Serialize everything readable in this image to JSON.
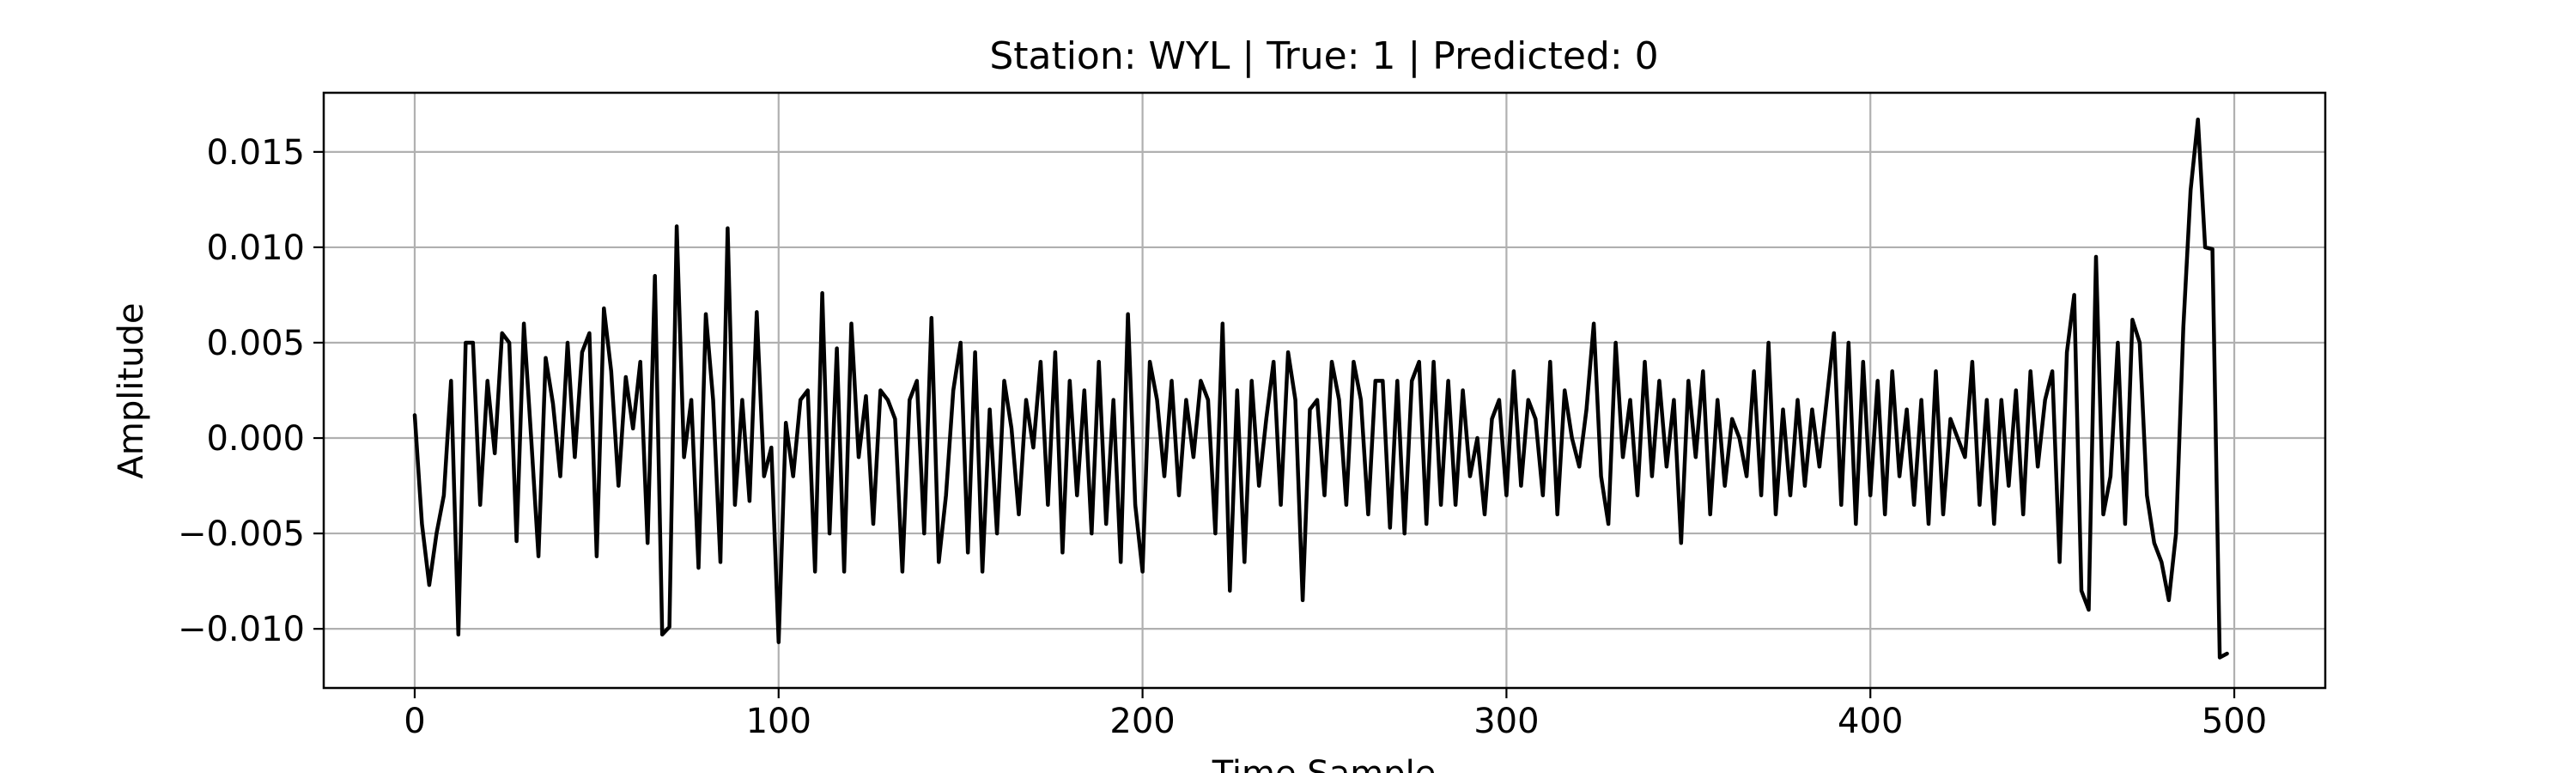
{
  "chart_data": {
    "type": "line",
    "title": "Station: WYL | True: 1 | Predicted: 0",
    "xlabel": "Time Sample",
    "ylabel": "Amplitude",
    "xlim": [
      -25,
      525
    ],
    "ylim": [
      -0.0131,
      0.0181
    ],
    "xticks": [
      0,
      100,
      200,
      300,
      400,
      500
    ],
    "xtick_labels": [
      "0",
      "100",
      "200",
      "300",
      "400",
      "500"
    ],
    "yticks": [
      -0.01,
      -0.005,
      0.0,
      0.005,
      0.01,
      0.015
    ],
    "ytick_labels": [
      "−0.010",
      "−0.005",
      "0.000",
      "0.005",
      "0.010",
      "0.015"
    ],
    "grid": true,
    "line_color": "#000000",
    "grid_color": "#b0b0b0",
    "series": [
      {
        "x_start": 0,
        "x_step": 2,
        "values": [
          0.0012,
          -0.0045,
          -0.0077,
          -0.005,
          -0.003,
          0.003,
          -0.0103,
          0.005,
          0.005,
          -0.0035,
          0.003,
          -0.0008,
          0.0055,
          0.005,
          -0.0054,
          0.006,
          0.0,
          -0.0062,
          0.0042,
          0.0018,
          -0.002,
          0.005,
          -0.001,
          0.0045,
          0.0055,
          -0.0062,
          0.0068,
          0.0035,
          -0.0025,
          0.0032,
          0.0005,
          0.004,
          -0.0055,
          0.0085,
          -0.0103,
          -0.0099,
          0.0111,
          -0.001,
          0.002,
          -0.0068,
          0.0065,
          0.002,
          -0.0065,
          0.011,
          -0.0035,
          0.002,
          -0.0033,
          0.0066,
          -0.002,
          -0.0005,
          -0.0107,
          0.0008,
          -0.002,
          0.002,
          0.0025,
          -0.007,
          0.0076,
          -0.005,
          0.0047,
          -0.007,
          0.006,
          -0.001,
          0.0022,
          -0.0045,
          0.0025,
          0.002,
          0.001,
          -0.007,
          0.002,
          0.003,
          -0.005,
          0.0063,
          -0.0065,
          -0.003,
          0.0025,
          0.005,
          -0.006,
          0.0045,
          -0.007,
          0.0015,
          -0.005,
          0.003,
          0.0005,
          -0.004,
          0.002,
          -0.0005,
          0.004,
          -0.0035,
          0.0045,
          -0.006,
          0.003,
          -0.003,
          0.0025,
          -0.005,
          0.004,
          -0.0045,
          0.002,
          -0.0065,
          0.0065,
          -0.0035,
          -0.007,
          0.004,
          0.002,
          -0.002,
          0.003,
          -0.003,
          0.002,
          -0.001,
          0.003,
          0.002,
          -0.005,
          0.006,
          -0.008,
          0.0025,
          -0.0065,
          0.003,
          -0.0025,
          0.001,
          0.004,
          -0.0035,
          0.0045,
          0.002,
          -0.0085,
          0.0015,
          0.002,
          -0.003,
          0.004,
          0.002,
          -0.0035,
          0.004,
          0.002,
          -0.004,
          0.003,
          0.003,
          -0.0047,
          0.003,
          -0.005,
          0.003,
          0.004,
          -0.0045,
          0.004,
          -0.0035,
          0.003,
          -0.0035,
          0.0025,
          -0.002,
          0.0,
          -0.004,
          0.001,
          0.002,
          -0.003,
          0.0035,
          -0.0025,
          0.002,
          0.001,
          -0.003,
          0.004,
          -0.004,
          0.0025,
          0.0,
          -0.0015,
          0.0015,
          0.006,
          -0.002,
          -0.0045,
          0.005,
          -0.001,
          0.002,
          -0.003,
          0.004,
          -0.002,
          0.003,
          -0.0015,
          0.002,
          -0.0055,
          0.003,
          -0.001,
          0.0035,
          -0.004,
          0.002,
          -0.0025,
          0.001,
          0.0,
          -0.002,
          0.0035,
          -0.003,
          0.005,
          -0.004,
          0.0015,
          -0.003,
          0.002,
          -0.0025,
          0.0015,
          -0.0015,
          0.002,
          0.0055,
          -0.0035,
          0.005,
          -0.0045,
          0.004,
          -0.003,
          0.003,
          -0.004,
          0.0035,
          -0.002,
          0.0015,
          -0.0035,
          0.002,
          -0.0045,
          0.0035,
          -0.004,
          0.001,
          0.0,
          -0.001,
          0.004,
          -0.0035,
          0.002,
          -0.0045,
          0.002,
          -0.0025,
          0.0025,
          -0.004,
          0.0035,
          -0.0015,
          0.002,
          0.0035,
          -0.0065,
          0.0045,
          0.0075,
          -0.008,
          -0.009,
          0.0095,
          -0.004,
          -0.002,
          0.005,
          -0.0045,
          0.0062,
          0.005,
          -0.003,
          -0.0055,
          -0.0065,
          -0.0085,
          -0.005,
          0.0058,
          0.013,
          0.0167,
          0.01,
          0.0099,
          -0.0115,
          -0.0113
        ]
      }
    ]
  }
}
